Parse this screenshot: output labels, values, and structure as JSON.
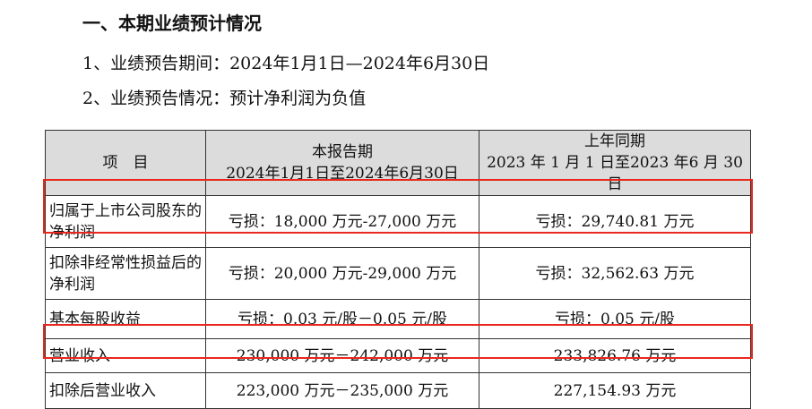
{
  "heading": "一、本期业绩预计情况",
  "lines": [
    "1、业绩预告期间：2024年1月1日—2024年6月30日",
    "2、业绩预告情况：预计净利润为负值"
  ],
  "table": {
    "headers": [
      {
        "title": "项　目",
        "sub": ""
      },
      {
        "title": "本报告期",
        "sub": "2024年1月1日至2024年6月30日"
      },
      {
        "title": "上年同期",
        "sub": "2023 年 1 月 1 日至2023 年6 月 30 日"
      }
    ],
    "rows": [
      {
        "item": "归属于上市公司股东的净利润",
        "current": "亏损：18,000 万元-27,000 万元",
        "prior": "亏损：29,740.81 万元",
        "highlighted": true
      },
      {
        "item": "扣除非经常性损益后的净利润",
        "current": "亏损：20,000 万元-29,000 万元",
        "prior": "亏损：32,562.63 万元",
        "highlighted": false
      },
      {
        "item": "基本每股收益",
        "current": "亏损：0.03 元/股－0.05 元/股",
        "prior": "亏损：0.05 元/股",
        "highlighted": false
      },
      {
        "item": "营业收入",
        "current": "230,000 万元－242,000 万元",
        "prior": "233,826.76 万元",
        "highlighted": true
      },
      {
        "item": "扣除后营业收入",
        "current": "223,000 万元－235,000 万元",
        "prior": "227,154.93 万元",
        "highlighted": false
      }
    ]
  },
  "highlight_color": "#e8281c"
}
